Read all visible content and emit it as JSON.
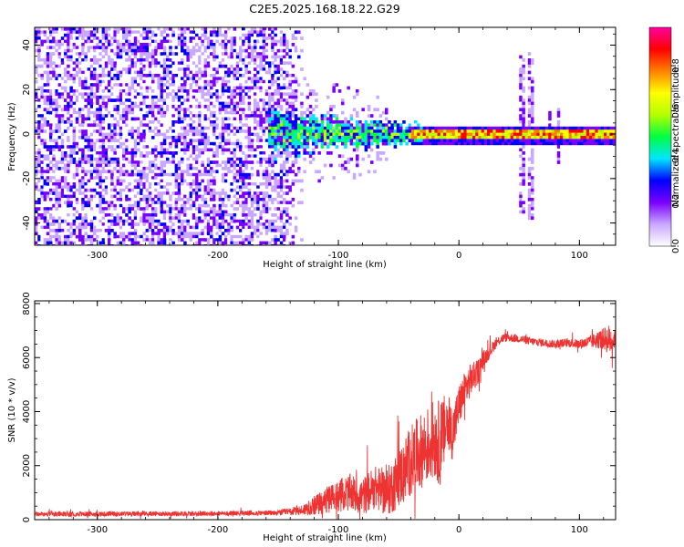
{
  "title": "C2E5.2025.168.18.22.G29",
  "chart_data": [
    {
      "type": "heatmap",
      "xlabel": "Height of straight line (km)",
      "ylabel": "Frequency (Hz)",
      "xlim": [
        -352,
        130
      ],
      "ylim": [
        -50,
        48
      ],
      "x_ticks": [
        -300,
        -200,
        -100,
        0,
        100
      ],
      "y_ticks": [
        -40,
        -20,
        0,
        20,
        40
      ],
      "colorbar": {
        "label": "Normalized spectral amplitude",
        "range": [
          0,
          0.97
        ],
        "ticks": [
          "0.0",
          "0.2",
          "0.4",
          "0.6",
          "0.8"
        ],
        "colors": [
          "#ffffff",
          "#c9a8ff",
          "#7a00ff",
          "#0000ff",
          "#00e6ff",
          "#00ff40",
          "#b4ff00",
          "#ffff00",
          "#ff8000",
          "#ff0000",
          "#ff00a0"
        ]
      },
      "regions": [
        {
          "desc": "noise",
          "x_range": [
            -352,
            -130
          ],
          "y_range": [
            -50,
            48
          ],
          "amplitude": 0.12
        },
        {
          "desc": "transition",
          "x_range": [
            -160,
            -30
          ],
          "y_range": [
            -15,
            10
          ],
          "amplitude": 0.4
        },
        {
          "desc": "carrier",
          "x_range": [
            -30,
            130
          ],
          "y_center": 0,
          "amplitude": 0.85
        },
        {
          "desc": "burst",
          "x_range": [
            50,
            62
          ],
          "y_range": [
            -40,
            40
          ],
          "amplitude": 0.15
        }
      ]
    },
    {
      "type": "line",
      "xlabel": "Height of straight line (km)",
      "ylabel": "SNR (10 * v/v)",
      "xlim": [
        -352,
        130
      ],
      "ylim": [
        0,
        8100
      ],
      "x_ticks": [
        -300,
        -200,
        -100,
        0,
        100
      ],
      "y_ticks": [
        0,
        2000,
        4000,
        6000,
        8000
      ],
      "color": "#ee3333",
      "x": [
        -352,
        -300,
        -250,
        -200,
        -150,
        -130,
        -110,
        -100,
        -90,
        -80,
        -70,
        -60,
        -50,
        -40,
        -30,
        -20,
        -15,
        -10,
        -5,
        0,
        5,
        10,
        15,
        20,
        25,
        30,
        35,
        40,
        50,
        60,
        70,
        80,
        90,
        100,
        110,
        120,
        125,
        130
      ],
      "y": [
        200,
        210,
        220,
        230,
        250,
        350,
        700,
        900,
        1000,
        850,
        1200,
        1000,
        1500,
        2200,
        2600,
        3000,
        2800,
        3600,
        3200,
        4200,
        4800,
        5200,
        5400,
        5900,
        6200,
        6500,
        6700,
        6750,
        6700,
        6600,
        6550,
        6500,
        6550,
        6500,
        6600,
        6700,
        6650,
        6700
      ],
      "noise_amplitude": [
        90,
        90,
        90,
        90,
        100,
        200,
        500,
        600,
        700,
        700,
        800,
        900,
        1100,
        1300,
        1400,
        1500,
        1600,
        1200,
        1000,
        800,
        700,
        600,
        500,
        350,
        250,
        200,
        180,
        160,
        160,
        150,
        150,
        150,
        160,
        180,
        250,
        400,
        600,
        300
      ]
    }
  ]
}
